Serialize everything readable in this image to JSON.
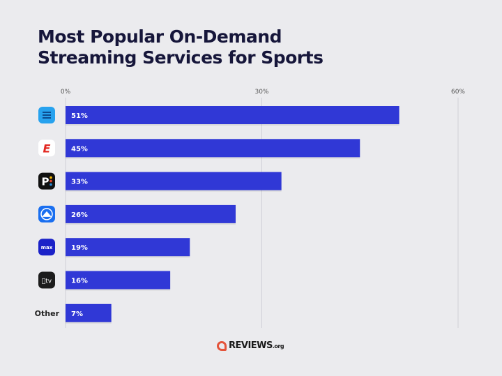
{
  "chart_data": {
    "type": "bar",
    "orientation": "horizontal",
    "title": "Most Popular On-Demand\nStreaming Services for Sports",
    "categories": [
      {
        "icon": "blue-streaming-app-icon",
        "label": ""
      },
      {
        "icon": "espn-icon",
        "label": ""
      },
      {
        "icon": "peacock-icon",
        "label": ""
      },
      {
        "icon": "paramount-plus-icon",
        "label": ""
      },
      {
        "icon": "max-icon",
        "label": ""
      },
      {
        "icon": "apple-tv-icon",
        "label": ""
      },
      {
        "icon": "",
        "label": "Other"
      }
    ],
    "values": [
      51,
      45,
      33,
      26,
      19,
      16,
      7
    ],
    "data_labels": [
      "51%",
      "45%",
      "33%",
      "26%",
      "19%",
      "16%",
      "7%"
    ],
    "xticks": [
      0,
      30,
      60
    ],
    "xtick_labels": [
      "0%",
      "30%",
      "60%"
    ],
    "xlim": [
      0,
      60
    ],
    "grid": true,
    "bar_color": "#3038d6"
  },
  "branding": {
    "name": "REVIEWS",
    "suffix": ".org",
    "color": "#e4533a"
  }
}
